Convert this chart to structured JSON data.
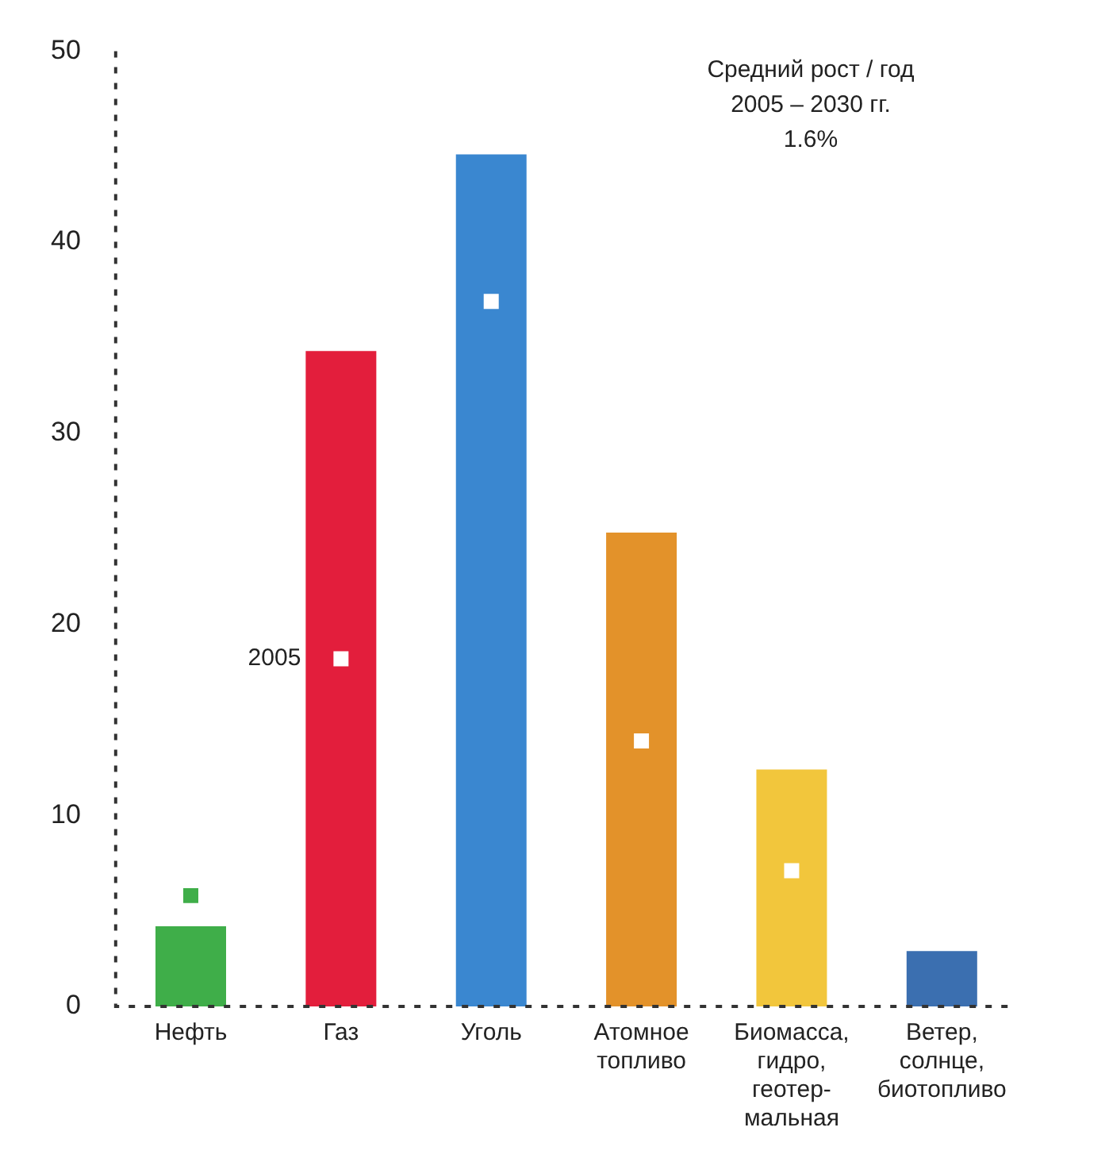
{
  "chart_data": {
    "type": "bar",
    "categories": [
      "Нефть",
      "Газ",
      "Уголь",
      "Атомное\nтопливо",
      "Биомасса,\nгидро,\nгеотер-\nмальная",
      "Ветер,\nсолнце,\nбиотопливо"
    ],
    "series": [
      {
        "type": "bar",
        "values": [
          4.2,
          34.3,
          44.6,
          24.8,
          12.4,
          2.9
        ],
        "colors": [
          "#3fae49",
          "#e31e3c",
          "#3a87d0",
          "#e3922a",
          "#f2c63c",
          "#3b6fb0"
        ]
      },
      {
        "type": "scatter",
        "marker": "square",
        "values": [
          5.8,
          18.2,
          36.9,
          13.9,
          7.1,
          null
        ],
        "colors": [
          "#3fae49",
          "#ffffff",
          "#ffffff",
          "#ffffff",
          "#ffffff",
          "#ffffff"
        ]
      }
    ],
    "ylim": [
      0,
      50
    ],
    "yticks": [
      0,
      10,
      20,
      30,
      40,
      50
    ],
    "grid": false,
    "legend": false,
    "annotations": [
      "Средний рост / год\n2005 – 2030 гг.\n1.6%",
      {
        "text": "2005",
        "x": "Газ",
        "y": 18.2
      }
    ]
  }
}
